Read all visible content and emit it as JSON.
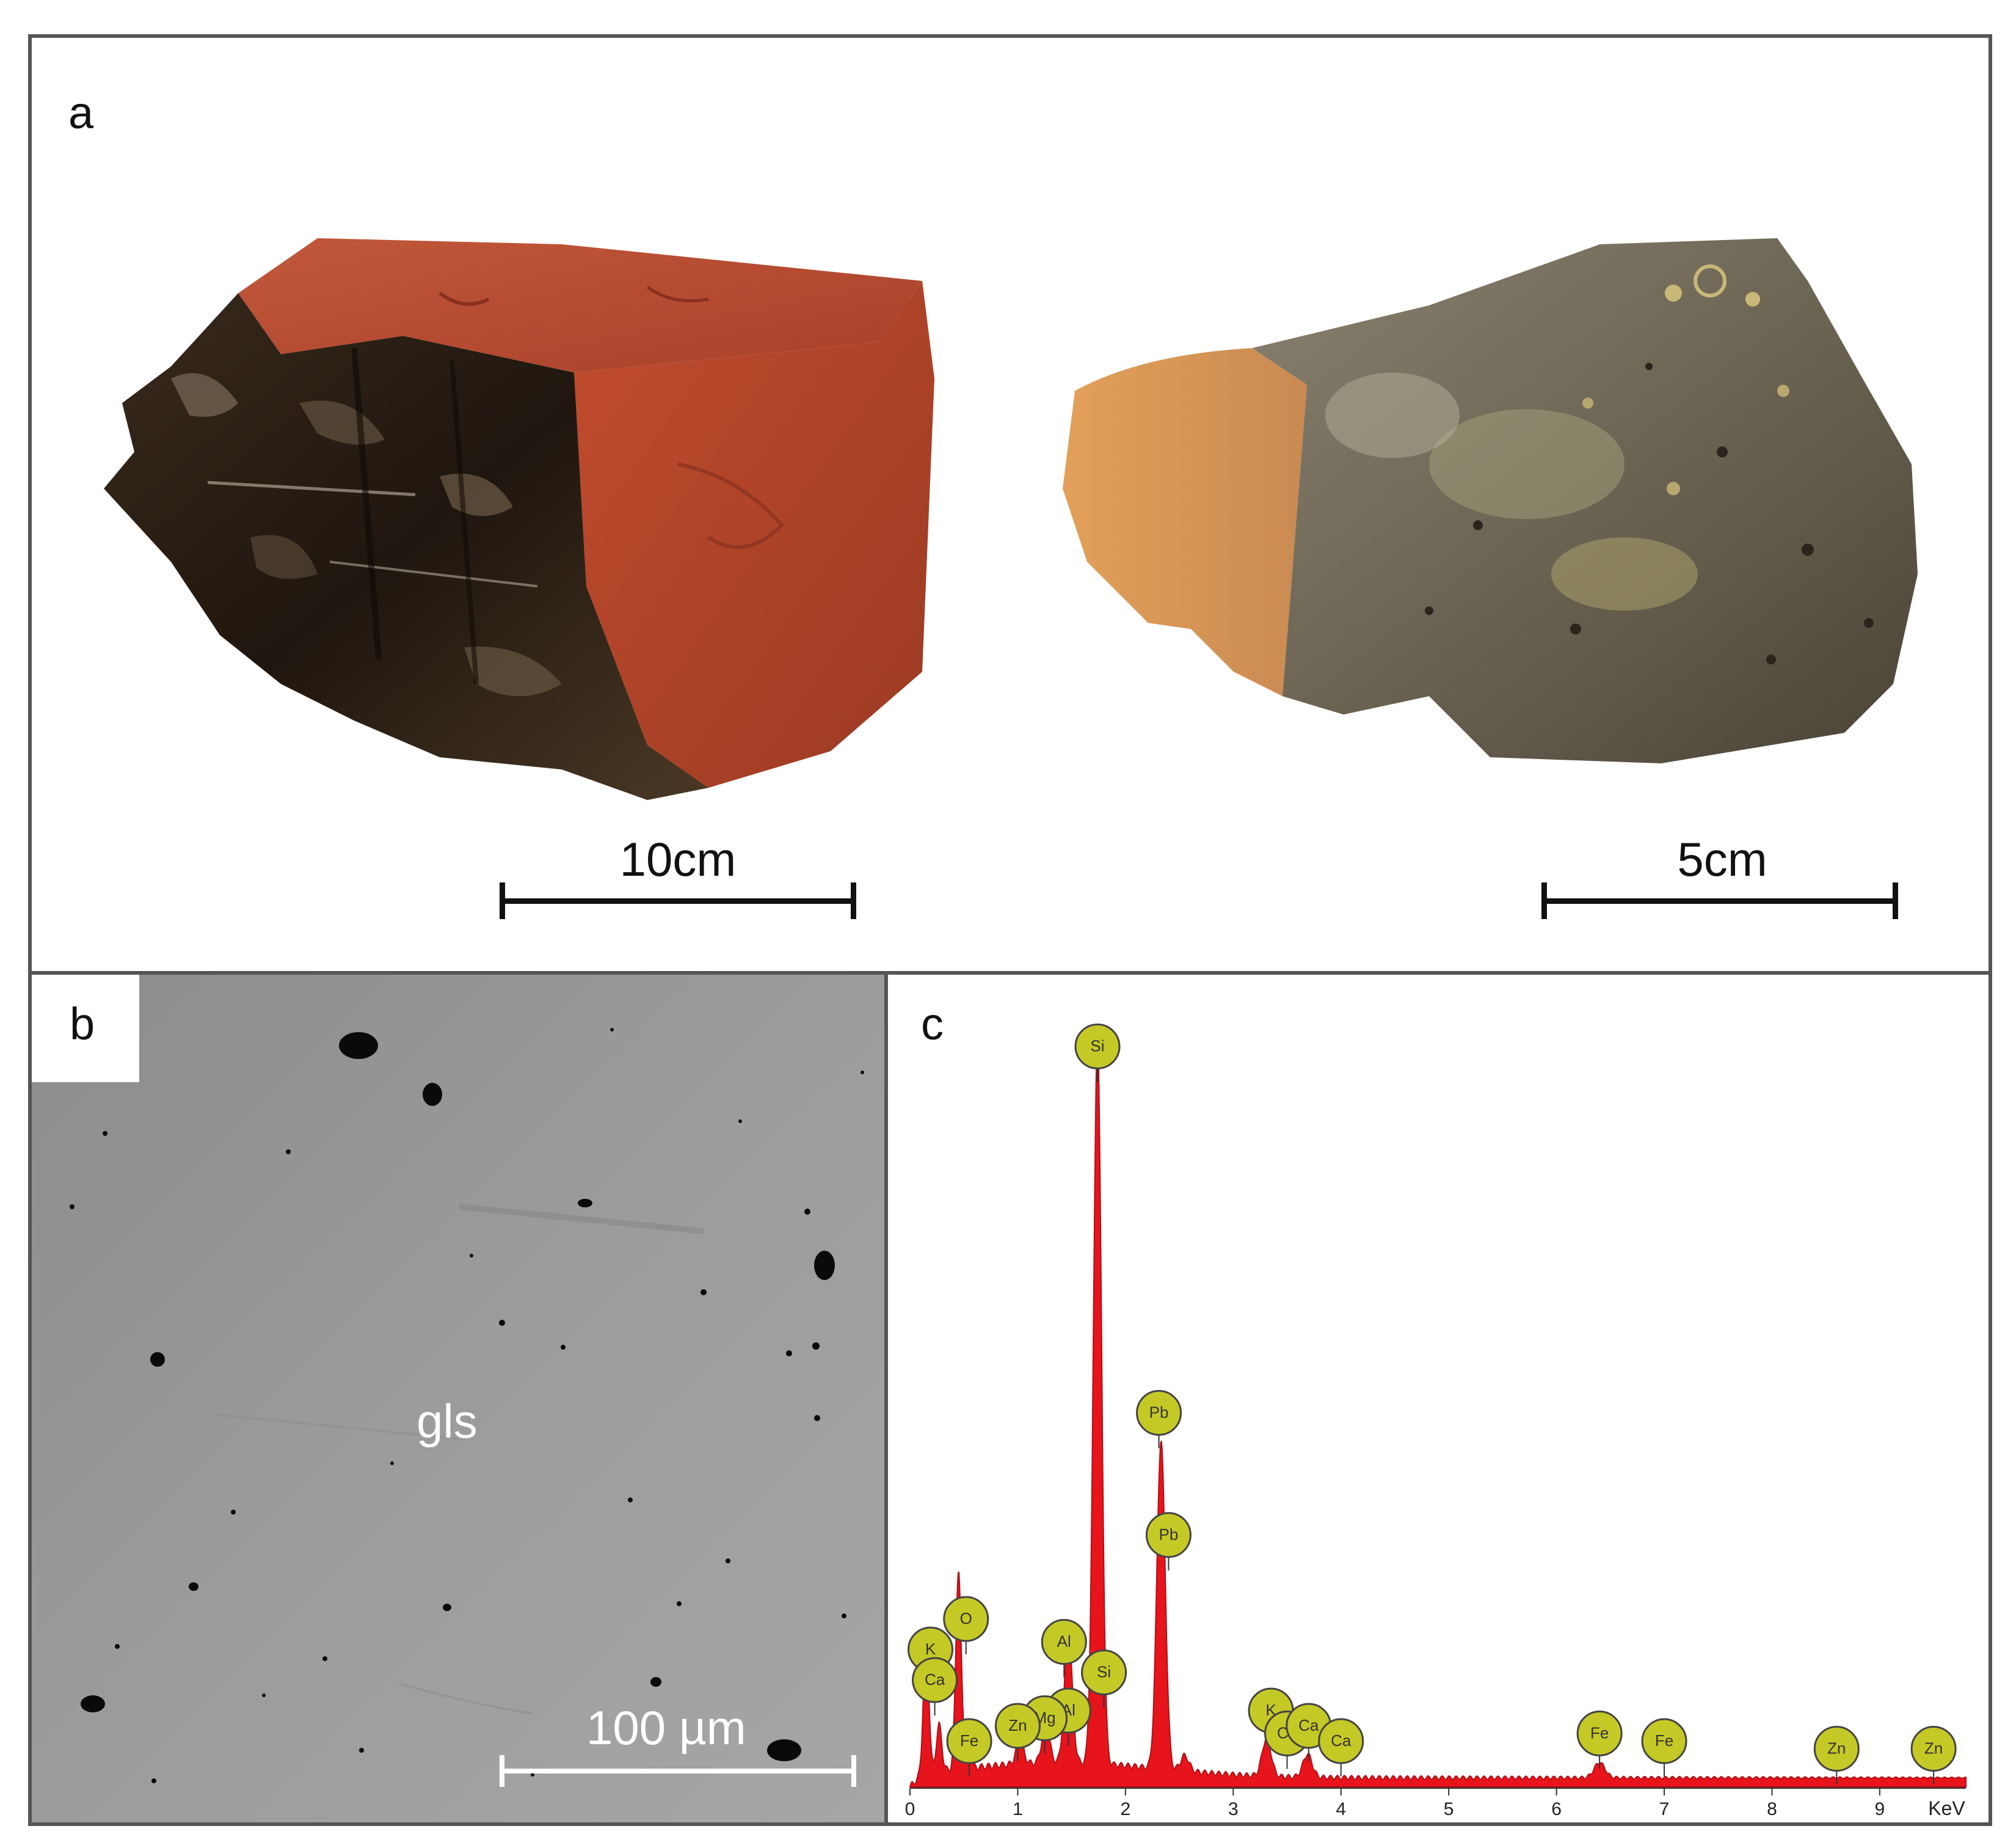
{
  "figure": {
    "panel_a": {
      "letter": "a",
      "scale_bars": [
        {
          "label": "10cm"
        },
        {
          "label": "5cm"
        }
      ]
    },
    "panel_b": {
      "letter": "b",
      "phase_label": "gls",
      "scale_label": "100 µm"
    },
    "panel_c": {
      "letter": "c",
      "chart_data": {
        "type": "line",
        "title": "",
        "xlabel": "KeV",
        "ylabel": "",
        "xlim": [
          0,
          9.8
        ],
        "x_ticks": [
          "0",
          "1",
          "2",
          "3",
          "4",
          "5",
          "6",
          "7",
          "8",
          "9"
        ],
        "series_color": "#e8141c",
        "marker_color": "#c5c926",
        "peaks": [
          {
            "x": 0.15,
            "h": 0.18
          },
          {
            "x": 0.27,
            "h": 0.06
          },
          {
            "x": 0.45,
            "h": 0.26
          },
          {
            "x": 0.53,
            "h": 0.05
          },
          {
            "x": 1.02,
            "h": 0.03
          },
          {
            "x": 1.26,
            "h": 0.05
          },
          {
            "x": 1.47,
            "h": 0.17
          },
          {
            "x": 1.74,
            "h": 0.95
          },
          {
            "x": 2.33,
            "h": 0.43
          },
          {
            "x": 2.55,
            "h": 0.02
          },
          {
            "x": 3.31,
            "h": 0.05
          },
          {
            "x": 3.69,
            "h": 0.03
          },
          {
            "x": 6.4,
            "h": 0.02
          }
        ],
        "element_labels": [
          {
            "label": "Si",
            "x": 1.74,
            "level": 0.97
          },
          {
            "label": "Pb",
            "x": 2.31,
            "level": 0.49
          },
          {
            "label": "Pb",
            "x": 2.4,
            "level": 0.33
          },
          {
            "label": "O",
            "x": 0.52,
            "level": 0.22
          },
          {
            "label": "K",
            "x": 0.19,
            "level": 0.18
          },
          {
            "label": "Ca",
            "x": 0.23,
            "level": 0.14
          },
          {
            "label": "Al",
            "x": 1.43,
            "level": 0.19
          },
          {
            "label": "Si",
            "x": 1.8,
            "level": 0.15
          },
          {
            "label": "Al",
            "x": 1.47,
            "level": 0.1
          },
          {
            "label": "Mg",
            "x": 1.25,
            "level": 0.09
          },
          {
            "label": "Zn",
            "x": 1.0,
            "level": 0.08
          },
          {
            "label": "Fe",
            "x": 0.55,
            "level": 0.06
          },
          {
            "label": "K",
            "x": 3.35,
            "level": 0.1
          },
          {
            "label": "Ca",
            "x": 3.5,
            "level": 0.07
          },
          {
            "label": "Ca",
            "x": 3.7,
            "level": 0.08
          },
          {
            "label": "Ca",
            "x": 4.0,
            "level": 0.06
          },
          {
            "label": "Fe",
            "x": 6.4,
            "level": 0.07
          },
          {
            "label": "Fe",
            "x": 7.0,
            "level": 0.06
          },
          {
            "label": "Zn",
            "x": 8.6,
            "level": 0.05
          },
          {
            "label": "Zn",
            "x": 9.5,
            "level": 0.05
          }
        ]
      }
    }
  }
}
